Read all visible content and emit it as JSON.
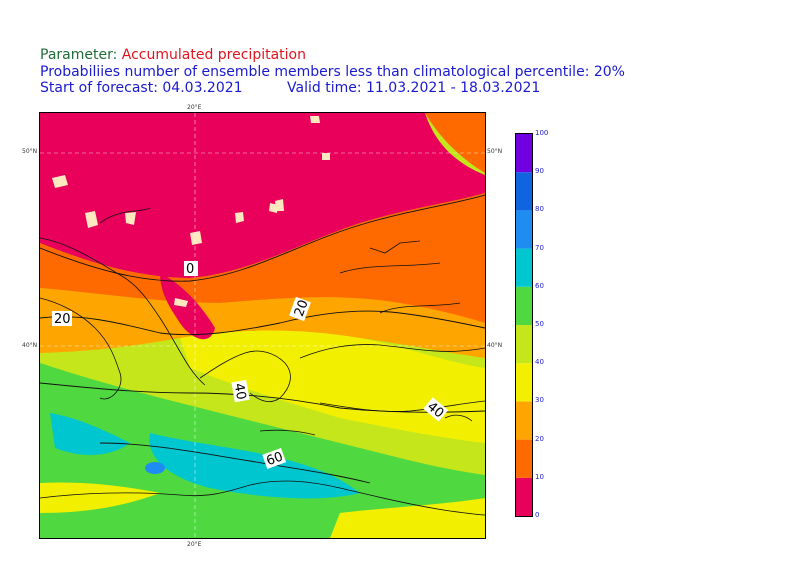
{
  "header": {
    "param_label": "Parameter:",
    "param_value": "Accumulated precipitation",
    "subtitle": "Probabiliies number of ensemble members less than climatological percentile: 20%",
    "start_label": "Start of forecast:",
    "start_value": "04.03.2021",
    "valid_label": "Valid time:",
    "valid_value": "11.03.2021 - 18.03.2021"
  },
  "map": {
    "lon_labels": {
      "top": "20°E",
      "bottom": "20°E"
    },
    "lat_labels": {
      "lat50_left": "50°N",
      "lat50_right": "50°N",
      "lat40_left": "40°N",
      "lat40_right": "40°N"
    },
    "contour_labels": [
      "0",
      "20",
      "20",
      "40",
      "40",
      "60"
    ]
  },
  "colorbar": {
    "levels": [
      "0",
      "10",
      "20",
      "30",
      "40",
      "50",
      "60",
      "70",
      "80",
      "90",
      "100"
    ],
    "colors": [
      "#e8005a",
      "#ff6a00",
      "#ffa500",
      "#f2f000",
      "#c4e61a",
      "#50d840",
      "#00c6d0",
      "#1e8cf0",
      "#1064e0",
      "#7000e0"
    ]
  }
}
